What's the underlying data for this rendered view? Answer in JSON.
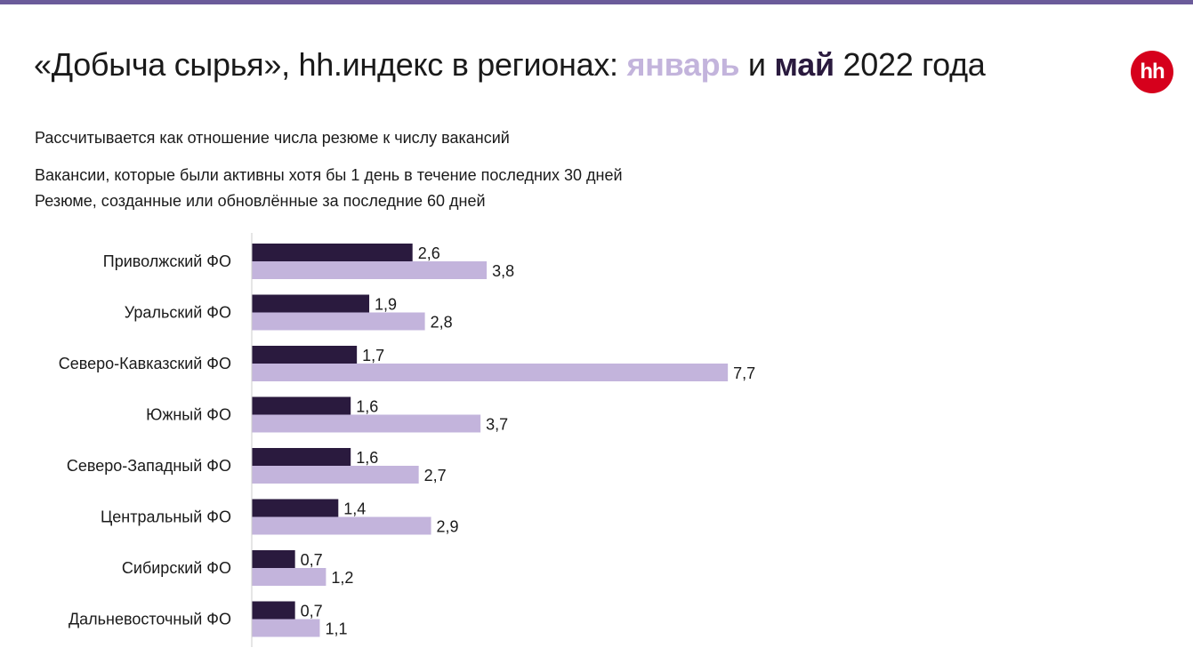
{
  "header": {
    "title_prefix": "«Добыча сырья», hh.индекс в регионах: ",
    "title_january": "январь",
    "title_and": " и ",
    "title_may": "май",
    "title_suffix": " 2022 года",
    "logo_text": "hh",
    "subtitle": "Рассчитывается как отношение числа резюме к числу вакансий",
    "note_vacancies": "Вакансии, которые были активны хотя бы 1 день в течение последних 30 дней",
    "note_resumes": "Резюме, созданные или обновлённые за последние 60 дней"
  },
  "colors": {
    "accent_bar": "#6b5b9a",
    "may": "#2a1a3e",
    "january": "#c3b4dc",
    "logo": "#d6001c"
  },
  "chart_data": {
    "type": "bar",
    "orientation": "horizontal",
    "categories": [
      "Приволжский ФО",
      "Уральский ФО",
      "Северо-Кавказский ФО",
      "Южный ФО",
      "Северо-Западный ФО",
      "Центральный ФО",
      "Сибирский ФО",
      "Дальневосточный ФО"
    ],
    "series": [
      {
        "name": "май",
        "color": "#2a1a3e",
        "values": [
          2.6,
          1.9,
          1.7,
          1.6,
          1.6,
          1.4,
          0.7,
          0.7
        ],
        "labels": [
          "2,6",
          "1,9",
          "1,7",
          "1,6",
          "1,6",
          "1,4",
          "0,7",
          "0,7"
        ]
      },
      {
        "name": "январь",
        "color": "#c3b4dc",
        "values": [
          3.8,
          2.8,
          7.7,
          3.7,
          2.7,
          2.9,
          1.2,
          1.1
        ],
        "labels": [
          "3,8",
          "2,8",
          "7,7",
          "3,7",
          "2,7",
          "2,9",
          "1,2",
          "1,1"
        ]
      }
    ],
    "title": "«Добыча сырья», hh.индекс в регионах: январь и май 2022 года",
    "xlabel": "",
    "ylabel": "",
    "xlim": [
      0,
      7.7
    ],
    "grid": false,
    "legend": "none"
  }
}
